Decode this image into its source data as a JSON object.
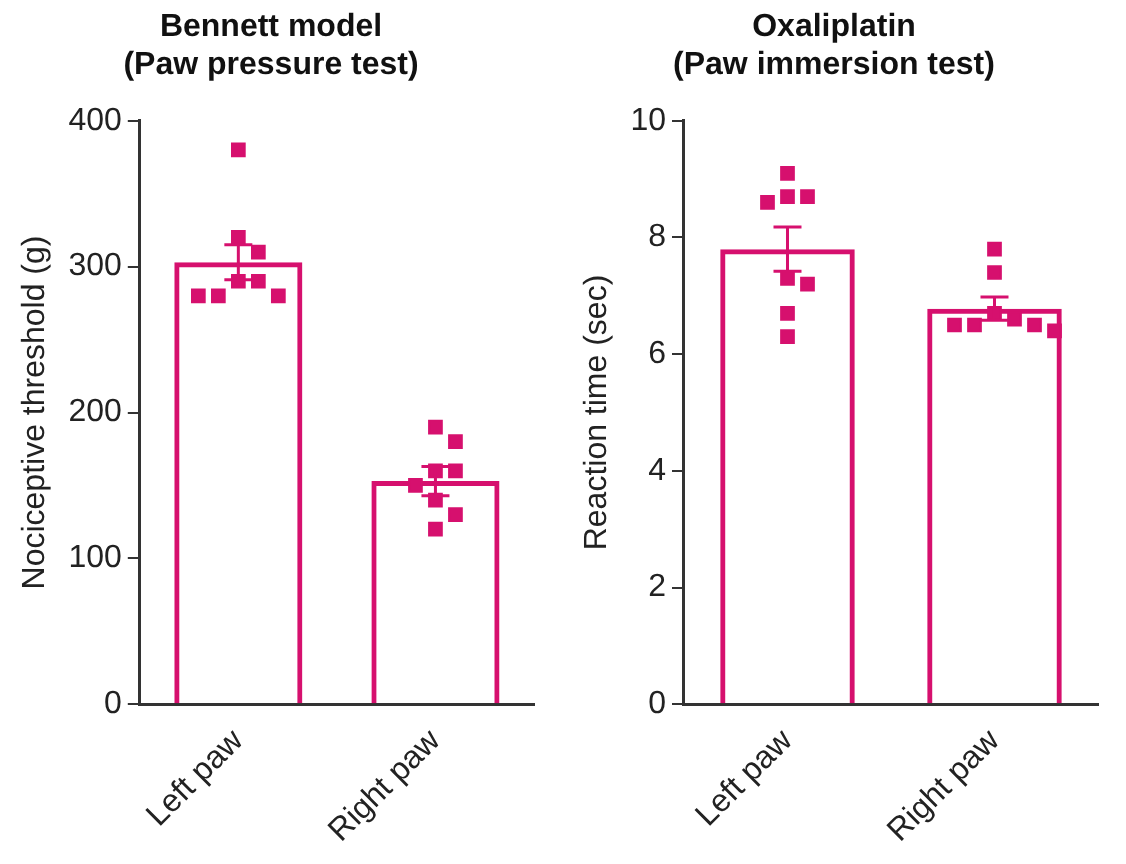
{
  "chart_data": [
    {
      "type": "bar",
      "title": "Bennett model\n(Paw pressure test)",
      "ylabel": "Nociceptive threshold (g)",
      "categories": [
        "Left paw",
        "Right paw"
      ],
      "ylim": [
        0,
        400
      ],
      "yticks": [
        0,
        100,
        200,
        300,
        400
      ],
      "grid": false,
      "legend": false,
      "marker": "square",
      "series": [
        {
          "color": "#d6106e",
          "values": [
            303,
            153
          ],
          "errors": [
            12,
            10
          ]
        },
        {
          "type": "scatter",
          "color": "#d6106e",
          "x": [
            "Left paw",
            "Left paw",
            "Left paw",
            "Left paw",
            "Left paw",
            "Left paw",
            "Left paw",
            "Left paw",
            "Right paw",
            "Right paw",
            "Right paw",
            "Right paw",
            "Right paw",
            "Right paw",
            "Right paw",
            "Right paw"
          ],
          "values": [
            380,
            320,
            310,
            290,
            290,
            280,
            280,
            280,
            190,
            180,
            160,
            160,
            150,
            140,
            130,
            120
          ]
        }
      ]
    },
    {
      "type": "bar",
      "title": "Oxaliplatin\n(Paw immersion test)",
      "ylabel": "Reaction time (sec)",
      "categories": [
        "Left paw",
        "Right paw"
      ],
      "ylim": [
        0,
        10
      ],
      "yticks": [
        0,
        2,
        4,
        6,
        8,
        10
      ],
      "grid": false,
      "legend": false,
      "marker": "square",
      "series": [
        {
          "color": "#d6106e",
          "values": [
            7.8,
            6.78
          ],
          "errors": [
            0.38,
            0.2
          ]
        },
        {
          "type": "scatter",
          "color": "#d6106e",
          "x": [
            "Left paw",
            "Left paw",
            "Left paw",
            "Left paw",
            "Left paw",
            "Left paw",
            "Left paw",
            "Left paw",
            "Right paw",
            "Right paw",
            "Right paw",
            "Right paw",
            "Right paw",
            "Right paw",
            "Right paw",
            "Right paw"
          ],
          "values": [
            9.1,
            8.7,
            8.7,
            8.6,
            7.3,
            7.2,
            6.7,
            6.3,
            7.8,
            7.4,
            6.7,
            6.6,
            6.5,
            6.5,
            6.5,
            6.4
          ]
        }
      ]
    }
  ]
}
